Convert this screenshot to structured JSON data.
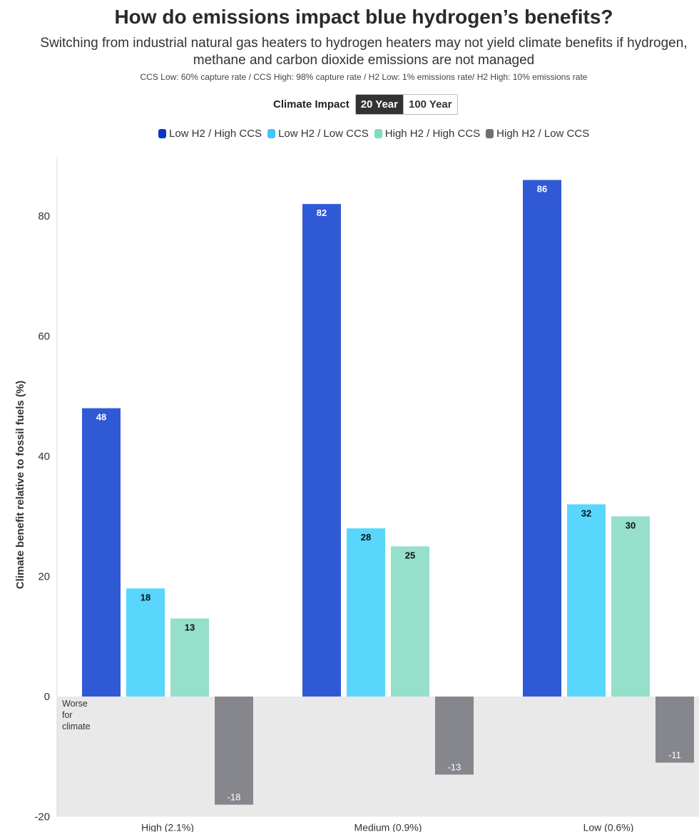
{
  "title": "How do emissions impact blue hydrogen’s benefits?",
  "subtitle": "Switching from industrial natural gas heaters to hydrogen heaters may not yield climate benefits if hydrogen, methane and carbon dioxide emissions are not managed",
  "note": "CCS Low: 60% capture rate / CCS High: 98% capture rate / H2 Low: 1% emissions rate/ H2 High: 10% emissions rate",
  "toggle": {
    "label": "Climate Impact",
    "options": [
      "20 Year",
      "100 Year"
    ],
    "selected": "20 Year"
  },
  "negative_region_label": "Worse for climate",
  "chart_data": {
    "type": "bar",
    "title": "How do emissions impact blue hydrogen’s benefits?",
    "ylabel": "Climate benefit relative to fossil fuels (%)",
    "xlabel": "",
    "ylim": [
      -20,
      90
    ],
    "yticks": [
      -20,
      0,
      20,
      40,
      60,
      80
    ],
    "grid": false,
    "legend_position": "top",
    "categories": [
      "High (2.1%)",
      "Medium (0.9%)",
      "Low (0.6%)"
    ],
    "series": [
      {
        "name": "Low H2 / High CCS",
        "color": "#3059d6",
        "values": [
          48,
          82,
          86
        ]
      },
      {
        "name": "Low H2 / Low CCS",
        "color": "#58d6fc",
        "values": [
          18,
          28,
          32
        ]
      },
      {
        "name": "High H2 / High CCS",
        "color": "#95dfcb",
        "values": [
          13,
          25,
          30
        ]
      },
      {
        "name": "High H2 / Low CCS",
        "color": "#86878c",
        "values": [
          -18,
          -13,
          -11
        ]
      }
    ]
  }
}
